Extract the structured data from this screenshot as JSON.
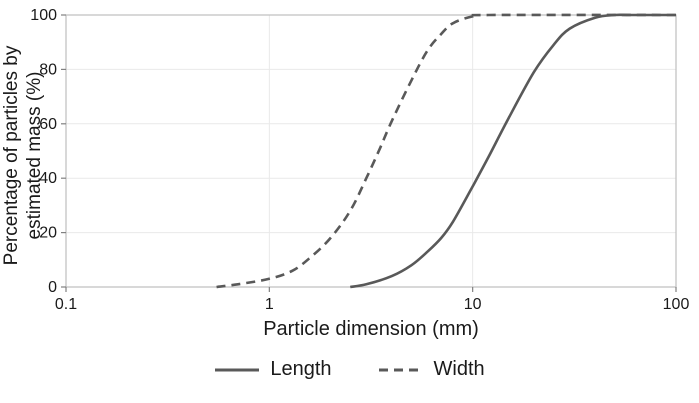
{
  "figure": {
    "background": "#ffffff",
    "text_color": "#1a1a1a",
    "axis_box_color": "#bfbfbf",
    "tick_color": "#808080",
    "gridline_color": "#e9e9e9"
  },
  "chart_data": {
    "type": "line",
    "x_scale": "log",
    "title": "",
    "xlabel": "Particle dimension (mm)",
    "ylabel": "Percentage of particles by estimated mass (%)",
    "ylabel_lines": [
      "Percentage of particles by",
      "estimated mass (%)"
    ],
    "xlim": [
      0.1,
      100
    ],
    "ylim": [
      0,
      100
    ],
    "x_ticks": [
      {
        "value": 0.1,
        "label": "0.1"
      },
      {
        "value": 1,
        "label": "1"
      },
      {
        "value": 10,
        "label": "10"
      },
      {
        "value": 100,
        "label": "100"
      }
    ],
    "y_ticks": [
      0,
      20,
      40,
      60,
      80,
      100
    ],
    "grid": "light",
    "legend_position": "bottom",
    "line_color": "#595959",
    "series": [
      {
        "name": "Length",
        "style": "solid",
        "x": [
          2.5,
          3,
          4,
          5,
          6,
          7,
          8,
          10,
          12,
          15,
          20,
          25,
          30,
          40,
          50,
          60,
          100
        ],
        "y": [
          0,
          1,
          4,
          8,
          13,
          18,
          24,
          37,
          48,
          62,
          79,
          89,
          95,
          99,
          100,
          100,
          100
        ]
      },
      {
        "name": "Width",
        "style": "dashed",
        "x": [
          0.55,
          0.7,
          1,
          1.3,
          1.6,
          2,
          2.5,
          3,
          3.5,
          4,
          5,
          6,
          7,
          8,
          10,
          12,
          100
        ],
        "y": [
          0,
          1,
          3,
          6,
          11,
          18,
          28,
          40,
          51,
          61,
          76,
          87,
          93,
          97,
          99.5,
          100,
          100
        ]
      }
    ]
  }
}
